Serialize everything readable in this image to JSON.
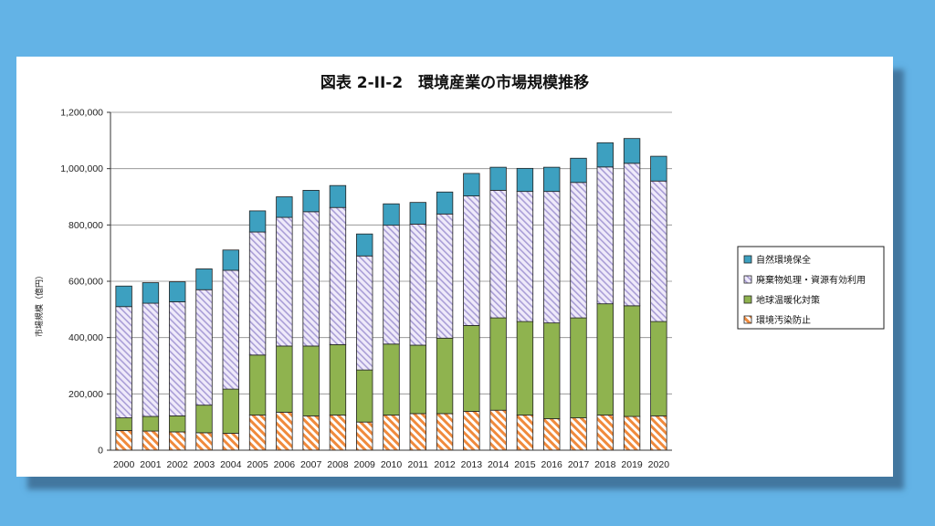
{
  "chart_data": {
    "type": "bar",
    "stacked": true,
    "title": "図表 2-II-2　環境産業の市場規模推移",
    "ylabel": "市場規模（億円）",
    "xlabel": "",
    "ylim": [
      0,
      1200000
    ],
    "yticks": [
      "0",
      "200,000",
      "400,000",
      "600,000",
      "800,000",
      "1,000,000",
      "1,200,000"
    ],
    "grid": true,
    "legend_position": "right",
    "categories": [
      "2000",
      "2001",
      "2002",
      "2003",
      "2004",
      "2005",
      "2006",
      "2007",
      "2008",
      "2009",
      "2010",
      "2011",
      "2012",
      "2013",
      "2014",
      "2015",
      "2016",
      "2017",
      "2018",
      "2019",
      "2020"
    ],
    "series": [
      {
        "name": "環境汚染防止",
        "color": "#f08a3c",
        "pattern": "diagonal-orange",
        "values": [
          70000,
          68000,
          65000,
          62000,
          60000,
          125000,
          135000,
          122000,
          125000,
          100000,
          125000,
          130000,
          130000,
          138000,
          142000,
          125000,
          112000,
          115000,
          125000,
          120000,
          122000
        ]
      },
      {
        "name": "地球温暖化対策",
        "color": "#8fb34f",
        "pattern": "solid",
        "values": [
          45000,
          52000,
          57000,
          98000,
          157000,
          213000,
          235000,
          248000,
          250000,
          185000,
          252000,
          243000,
          268000,
          305000,
          328000,
          332000,
          340000,
          355000,
          395000,
          393000,
          335000
        ]
      },
      {
        "name": "廃棄物処理・資源有効利用",
        "color": "#c8c0e6",
        "pattern": "diagonal-lavender",
        "values": [
          395000,
          402000,
          405000,
          410000,
          422000,
          437000,
          457000,
          477000,
          487000,
          405000,
          422000,
          430000,
          441000,
          460000,
          453000,
          462000,
          467000,
          481000,
          486000,
          506000,
          499000
        ]
      },
      {
        "name": "自然環境保全",
        "color": "#3da0c0",
        "pattern": "solid",
        "values": [
          73000,
          73000,
          71000,
          74000,
          72000,
          75000,
          73000,
          76000,
          78000,
          78000,
          76000,
          77000,
          78000,
          80000,
          82000,
          82000,
          86000,
          86000,
          86000,
          88000,
          88000
        ]
      }
    ]
  }
}
